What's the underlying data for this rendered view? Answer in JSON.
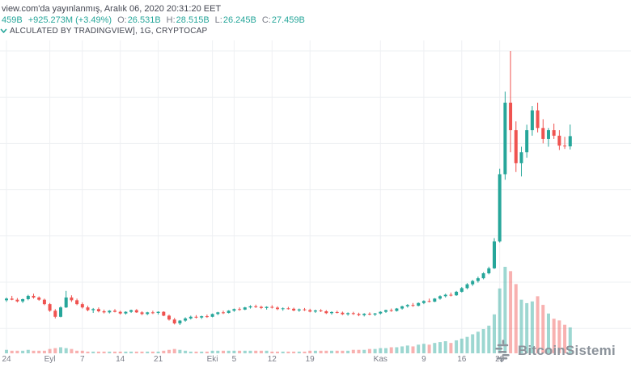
{
  "header": {
    "published": "view.com'da yayınlanmış, Aralık 06, 2020 20:31:20 EET",
    "legend": {
      "value": "459B",
      "change": "+925.273M (+3.49%)",
      "o_label": "O:",
      "o": "26.531B",
      "h_label": "H:",
      "h": "28.515B",
      "l_label": "L:",
      "l": "26.245B",
      "c_label": "C:",
      "c": "27.459B"
    },
    "symbol": "ALCULATED BY TRADINGVIEW], 1G, CRYPTOCAP"
  },
  "watermark": {
    "text": "BitcoinSistemi"
  },
  "colors": {
    "up": "#26a69a",
    "down": "#ef5350",
    "volume_up": "rgba(38,166,154,0.45)",
    "volume_down": "rgba(239,83,80,0.45)",
    "grid": "#eef0f3",
    "axis_text": "#787b86",
    "header_text": "#434651",
    "legend_label": "#787b86",
    "watermark": "#8c939b"
  },
  "chart_data": {
    "type": "candlestick",
    "interval": "1G",
    "source": "CRYPTOCAP",
    "unit": "USD billions (B)",
    "legend_last": {
      "open": "26.531B",
      "high": "28.515B",
      "low": "26.245B",
      "close": "27.459B",
      "change": "+925.273M (+3.49%)"
    },
    "gridlines": {
      "horizontal": true,
      "vertical": true
    },
    "x_ticks": [
      {
        "label": "24",
        "i": 0
      },
      {
        "label": "Eyl",
        "i": 8
      },
      {
        "label": "7",
        "i": 14
      },
      {
        "label": "14",
        "i": 21
      },
      {
        "label": "21",
        "i": 28
      },
      {
        "label": "Eki",
        "i": 38
      },
      {
        "label": "5",
        "i": 42
      },
      {
        "label": "12",
        "i": 49
      },
      {
        "label": "19",
        "i": 56
      },
      {
        "label": "Kas",
        "i": 69
      },
      {
        "label": "9",
        "i": 77
      },
      {
        "label": "16",
        "i": 84
      },
      {
        "label": "23",
        "i": 91
      }
    ],
    "y_min_visible": 10.3,
    "y_max_visible": 35.2,
    "ohlc": [
      [
        12.55,
        12.8,
        12.4,
        12.7
      ],
      [
        12.7,
        12.95,
        12.55,
        12.6
      ],
      [
        12.6,
        12.75,
        12.35,
        12.45
      ],
      [
        12.45,
        12.7,
        12.3,
        12.65
      ],
      [
        12.65,
        13.05,
        12.55,
        12.95
      ],
      [
        12.95,
        13.15,
        12.7,
        12.8
      ],
      [
        12.8,
        12.9,
        12.5,
        12.6
      ],
      [
        12.6,
        12.7,
        12.1,
        12.2
      ],
      [
        12.2,
        12.3,
        11.5,
        11.6
      ],
      [
        11.6,
        11.75,
        10.9,
        11.05
      ],
      [
        11.05,
        12.0,
        11.0,
        11.9
      ],
      [
        11.9,
        13.4,
        11.85,
        12.8
      ],
      [
        12.8,
        13.0,
        12.4,
        12.55
      ],
      [
        12.55,
        12.7,
        12.1,
        12.2
      ],
      [
        12.2,
        12.35,
        11.8,
        11.9
      ],
      [
        11.9,
        12.05,
        11.55,
        11.65
      ],
      [
        11.65,
        11.85,
        11.4,
        11.75
      ],
      [
        11.75,
        11.9,
        11.45,
        11.55
      ],
      [
        11.55,
        11.7,
        11.35,
        11.45
      ],
      [
        11.45,
        11.65,
        11.35,
        11.6
      ],
      [
        11.6,
        11.75,
        11.45,
        11.5
      ],
      [
        11.5,
        11.6,
        11.25,
        11.35
      ],
      [
        11.35,
        11.55,
        11.25,
        11.5
      ],
      [
        11.5,
        11.7,
        11.4,
        11.65
      ],
      [
        11.65,
        11.75,
        11.4,
        11.45
      ],
      [
        11.45,
        11.55,
        11.2,
        11.3
      ],
      [
        11.3,
        11.5,
        11.2,
        11.45
      ],
      [
        11.45,
        11.6,
        11.3,
        11.4
      ],
      [
        11.4,
        11.55,
        11.25,
        11.5
      ],
      [
        11.5,
        11.55,
        11.1,
        11.15
      ],
      [
        11.15,
        11.25,
        10.7,
        10.8
      ],
      [
        10.8,
        10.95,
        10.35,
        10.45
      ],
      [
        10.45,
        10.75,
        10.3,
        10.7
      ],
      [
        10.7,
        11.0,
        10.6,
        10.9
      ],
      [
        10.9,
        11.15,
        10.8,
        11.05
      ],
      [
        11.05,
        11.2,
        10.9,
        10.98
      ],
      [
        10.98,
        11.15,
        10.85,
        11.1
      ],
      [
        11.1,
        11.25,
        10.95,
        11.05
      ],
      [
        11.05,
        11.35,
        11.0,
        11.3
      ],
      [
        11.3,
        11.5,
        11.2,
        11.45
      ],
      [
        11.45,
        11.6,
        11.3,
        11.4
      ],
      [
        11.4,
        11.65,
        11.35,
        11.6
      ],
      [
        11.6,
        11.8,
        11.5,
        11.75
      ],
      [
        11.75,
        11.9,
        11.6,
        11.7
      ],
      [
        11.7,
        11.95,
        11.65,
        11.9
      ],
      [
        11.9,
        12.1,
        11.8,
        12.0
      ],
      [
        12.0,
        12.15,
        11.85,
        11.95
      ],
      [
        11.95,
        12.05,
        11.75,
        11.85
      ],
      [
        11.85,
        12.0,
        11.7,
        11.95
      ],
      [
        11.95,
        12.1,
        11.8,
        11.88
      ],
      [
        11.88,
        12.0,
        11.65,
        11.75
      ],
      [
        11.75,
        11.9,
        11.6,
        11.82
      ],
      [
        11.82,
        11.95,
        11.7,
        11.78
      ],
      [
        11.78,
        11.88,
        11.55,
        11.62
      ],
      [
        11.62,
        11.8,
        11.5,
        11.72
      ],
      [
        11.72,
        11.85,
        11.58,
        11.65
      ],
      [
        11.65,
        11.78,
        11.45,
        11.52
      ],
      [
        11.52,
        11.7,
        11.4,
        11.62
      ],
      [
        11.62,
        11.75,
        11.48,
        11.55
      ],
      [
        11.55,
        11.65,
        11.3,
        11.38
      ],
      [
        11.38,
        11.55,
        11.25,
        11.48
      ],
      [
        11.48,
        11.6,
        11.35,
        11.42
      ],
      [
        11.42,
        11.52,
        11.2,
        11.28
      ],
      [
        11.28,
        11.45,
        11.15,
        11.38
      ],
      [
        11.38,
        11.5,
        11.22,
        11.3
      ],
      [
        11.3,
        11.42,
        11.1,
        11.2
      ],
      [
        11.2,
        11.38,
        11.08,
        11.32
      ],
      [
        11.32,
        11.45,
        11.18,
        11.25
      ],
      [
        11.25,
        11.4,
        11.12,
        11.35
      ],
      [
        11.35,
        11.55,
        11.25,
        11.5
      ],
      [
        11.5,
        11.7,
        11.4,
        11.65
      ],
      [
        11.65,
        11.8,
        11.5,
        11.58
      ],
      [
        11.58,
        11.85,
        11.52,
        11.8
      ],
      [
        11.8,
        12.05,
        11.7,
        12.0
      ],
      [
        12.0,
        12.2,
        11.88,
        12.12
      ],
      [
        12.12,
        12.3,
        11.95,
        12.05
      ],
      [
        12.05,
        12.35,
        12.0,
        12.3
      ],
      [
        12.3,
        12.55,
        12.2,
        12.48
      ],
      [
        12.48,
        12.7,
        12.35,
        12.42
      ],
      [
        12.42,
        12.75,
        12.38,
        12.7
      ],
      [
        12.7,
        13.0,
        12.6,
        12.92
      ],
      [
        12.92,
        13.15,
        12.8,
        13.05
      ],
      [
        13.05,
        13.25,
        12.9,
        13.0
      ],
      [
        13.0,
        13.4,
        12.95,
        13.32
      ],
      [
        13.32,
        13.75,
        13.25,
        13.65
      ],
      [
        13.65,
        14.1,
        13.55,
        14.0
      ],
      [
        14.0,
        14.4,
        13.85,
        14.3
      ],
      [
        14.3,
        14.7,
        14.15,
        14.55
      ],
      [
        14.55,
        15.1,
        14.45,
        15.0
      ],
      [
        15.0,
        15.6,
        14.9,
        15.45
      ],
      [
        15.45,
        18.2,
        15.4,
        17.9
      ],
      [
        17.9,
        24.5,
        17.8,
        24.0
      ],
      [
        24.0,
        31.5,
        23.5,
        30.5
      ],
      [
        30.5,
        35.2,
        26.0,
        28.0
      ],
      [
        28.0,
        28.8,
        24.2,
        25.0
      ],
      [
        25.0,
        26.5,
        23.8,
        26.0
      ],
      [
        26.0,
        28.5,
        25.5,
        28.0
      ],
      [
        28.0,
        30.2,
        27.5,
        29.8
      ],
      [
        29.8,
        30.5,
        27.8,
        28.2
      ],
      [
        28.2,
        29.0,
        26.8,
        27.2
      ],
      [
        27.2,
        28.2,
        26.5,
        28.0
      ],
      [
        28.0,
        28.6,
        27.2,
        27.5
      ],
      [
        27.5,
        28.0,
        26.2,
        26.6
      ],
      [
        26.6,
        27.4,
        26.3,
        26.53
      ],
      [
        26.531,
        28.515,
        26.245,
        27.459
      ]
    ],
    "volume": [
      4,
      3,
      3,
      3,
      4,
      3,
      3,
      3,
      5,
      6,
      7,
      6,
      5,
      3,
      3,
      2,
      2,
      2,
      2,
      2,
      2,
      2,
      2,
      2,
      2,
      2,
      2,
      2,
      2,
      3,
      4,
      5,
      4,
      3,
      2,
      2,
      2,
      2,
      3,
      3,
      3,
      3,
      3,
      3,
      3,
      3,
      3,
      3,
      3,
      2,
      2,
      2,
      2,
      2,
      2,
      2,
      3,
      3,
      3,
      3,
      3,
      3,
      3,
      3,
      4,
      4,
      4,
      5,
      5,
      6,
      6,
      7,
      7,
      8,
      9,
      8,
      10,
      11,
      10,
      12,
      13,
      14,
      12,
      15,
      17,
      19,
      22,
      25,
      28,
      32,
      45,
      75,
      100,
      95,
      80,
      62,
      58,
      60,
      66,
      56,
      46,
      40,
      38,
      33,
      30
    ]
  }
}
